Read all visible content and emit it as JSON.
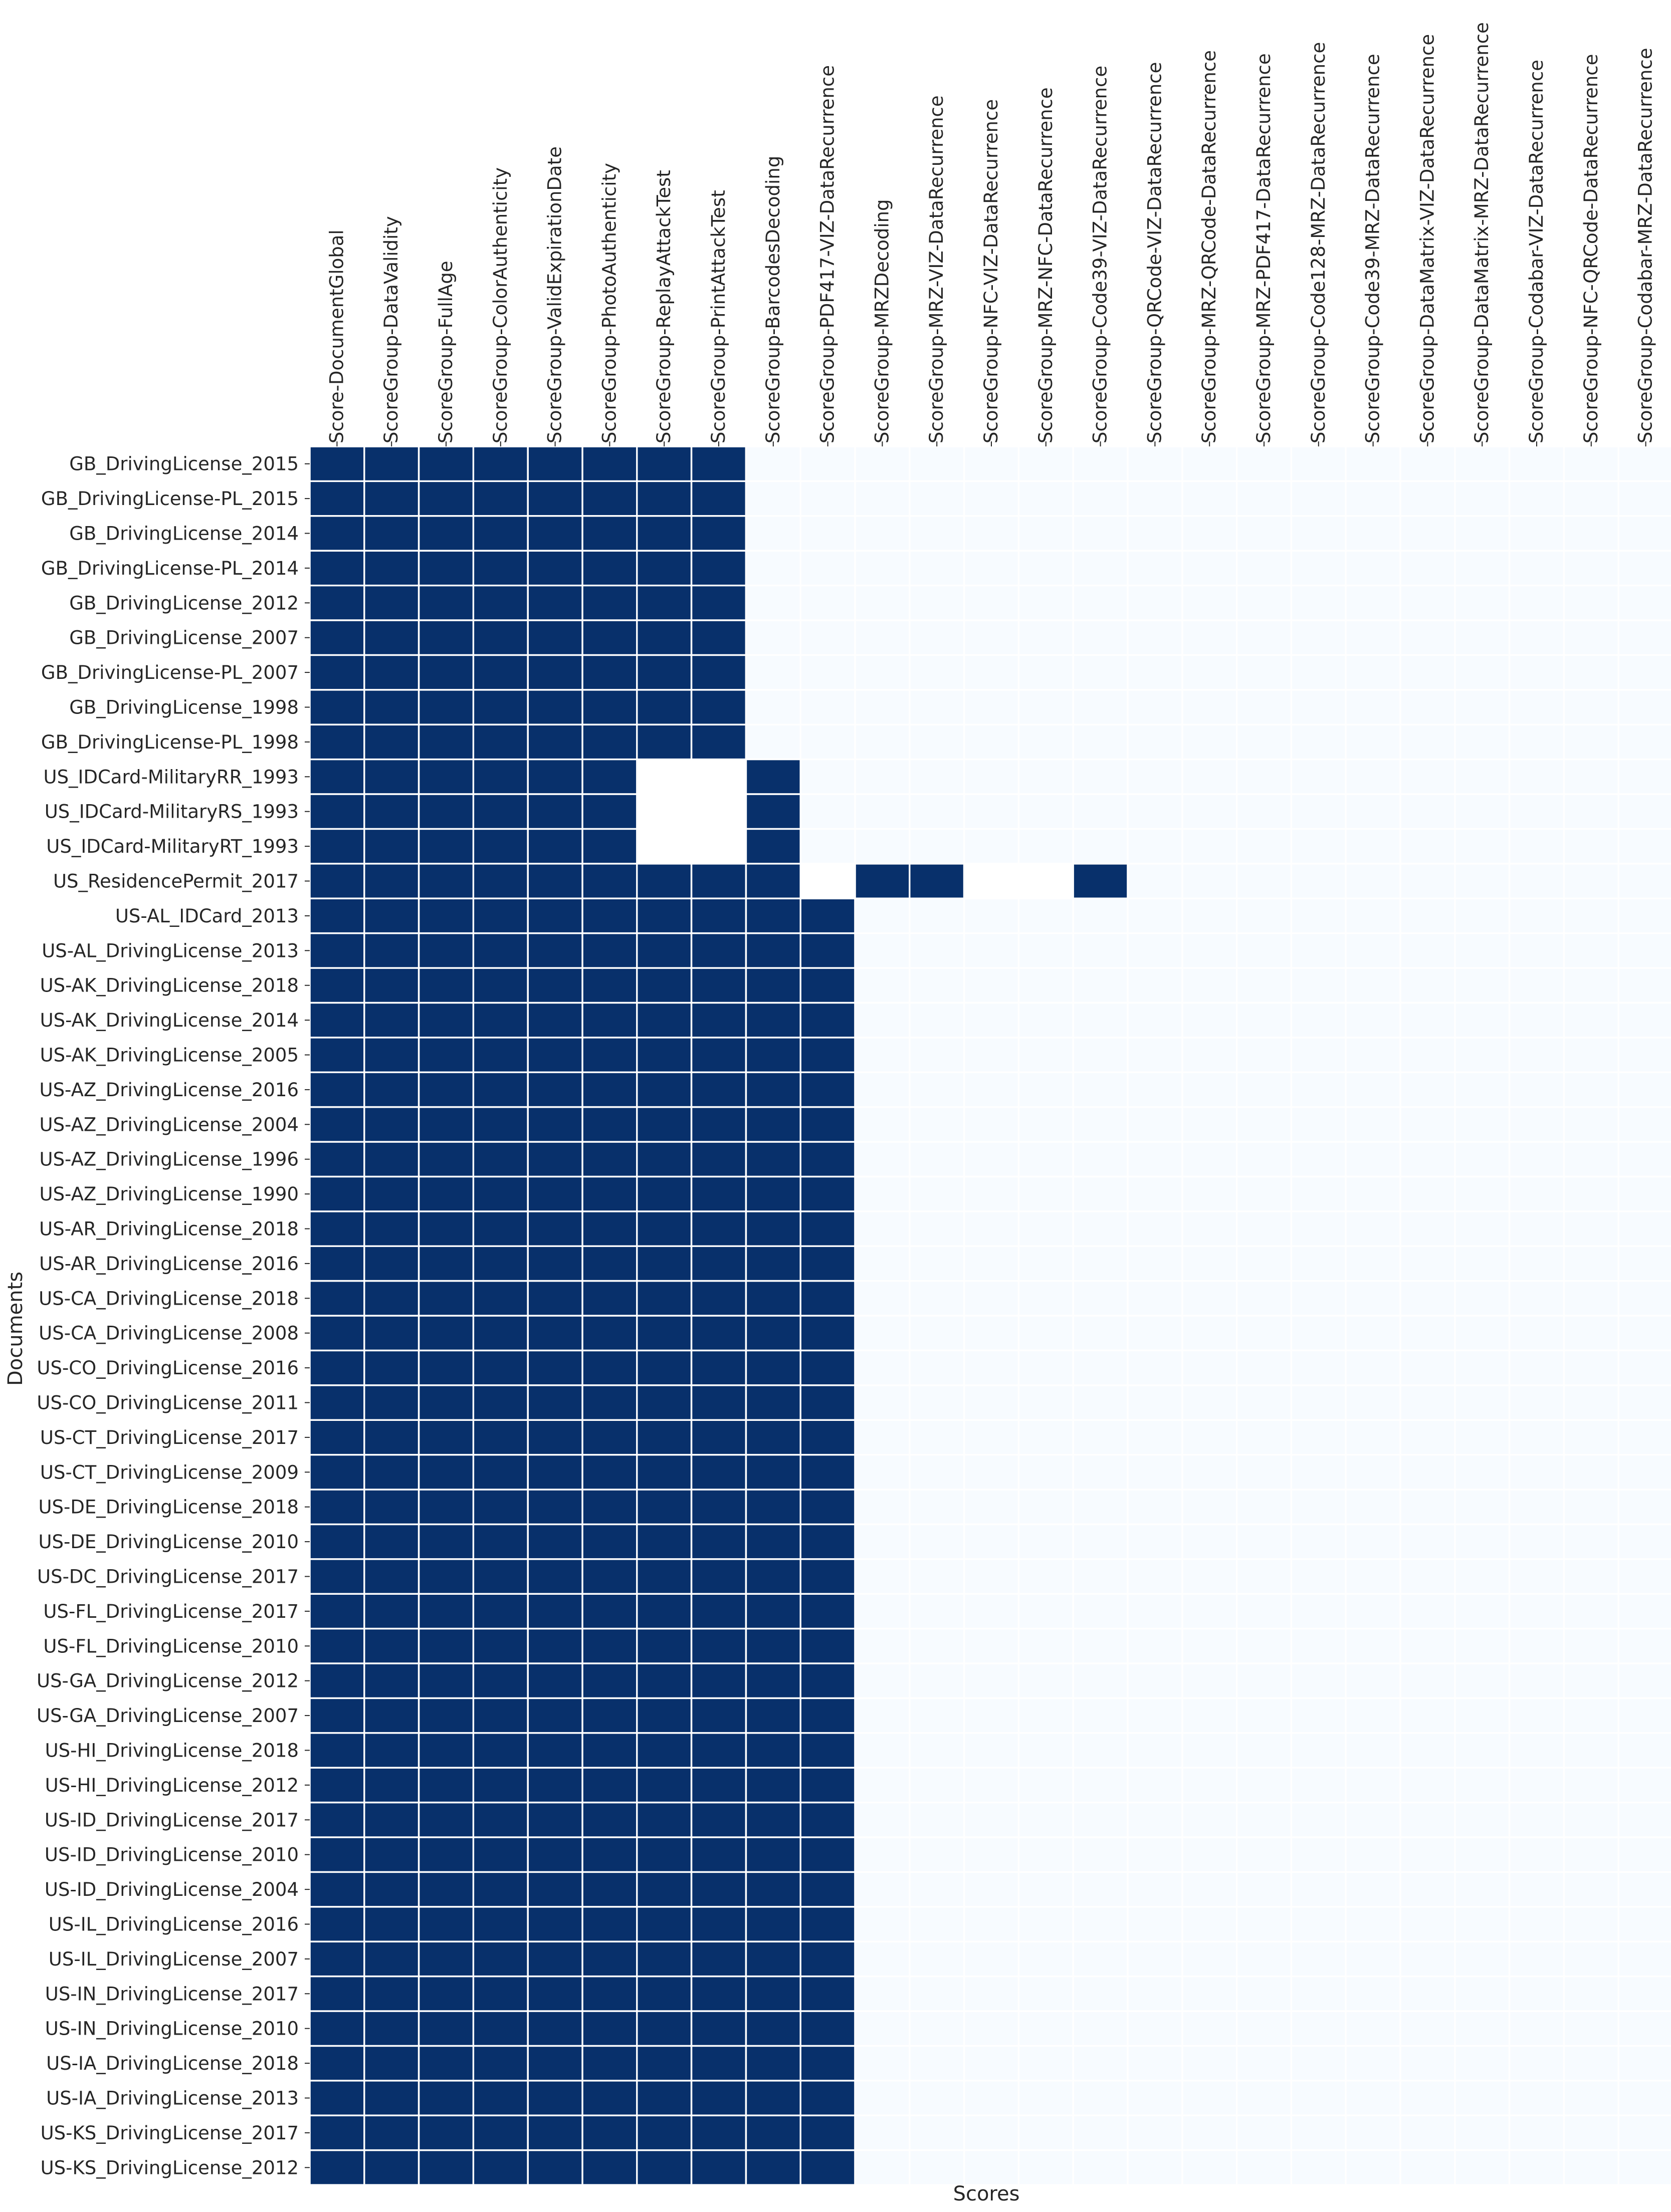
{
  "chart_data": {
    "type": "heatmap",
    "title": "",
    "xlabel": "Scores",
    "ylabel": "Documents",
    "colors": {
      "high": "#08306b",
      "low": "#f7fbff",
      "gap": "#ffffff"
    },
    "value_range": [
      0,
      1
    ],
    "columns": [
      "Score-DocumentGlobal",
      "ScoreGroup-DataValidity",
      "ScoreGroup-FullAge",
      "ScoreGroup-ColorAuthenticity",
      "ScoreGroup-ValidExpirationDate",
      "ScoreGroup-PhotoAuthenticity",
      "ScoreGroup-ReplayAttackTest",
      "ScoreGroup-PrintAttackTest",
      "ScoreGroup-BarcodesDecoding",
      "ScoreGroup-PDF417-VIZ-DataRecurrence",
      "ScoreGroup-MRZDecoding",
      "ScoreGroup-MRZ-VIZ-DataRecurrence",
      "ScoreGroup-NFC-VIZ-DataRecurrence",
      "ScoreGroup-MRZ-NFC-DataRecurrence",
      "ScoreGroup-Code39-VIZ-DataRecurrence",
      "ScoreGroup-QRCode-VIZ-DataRecurrence",
      "ScoreGroup-MRZ-QRCode-DataRecurrence",
      "ScoreGroup-MRZ-PDF417-DataRecurrence",
      "ScoreGroup-Code128-MRZ-DataRecurrence",
      "ScoreGroup-Code39-MRZ-DataRecurrence",
      "ScoreGroup-DataMatrix-VIZ-DataRecurrence",
      "ScoreGroup-DataMatrix-MRZ-DataRecurrence",
      "ScoreGroup-Codabar-VIZ-DataRecurrence",
      "ScoreGroup-NFC-QRCode-DataRecurrence",
      "ScoreGroup-Codabar-MRZ-DataRecurrence"
    ],
    "rows": [
      "GB_DrivingLicense_2015",
      "GB_DrivingLicense-PL_2015",
      "GB_DrivingLicense_2014",
      "GB_DrivingLicense-PL_2014",
      "GB_DrivingLicense_2012",
      "GB_DrivingLicense_2007",
      "GB_DrivingLicense-PL_2007",
      "GB_DrivingLicense_1998",
      "GB_DrivingLicense-PL_1998",
      "US_IDCard-MilitaryRR_1993",
      "US_IDCard-MilitaryRS_1993",
      "US_IDCard-MilitaryRT_1993",
      "US_ResidencePermit_2017",
      "US-AL_IDCard_2013",
      "US-AL_DrivingLicense_2013",
      "US-AK_DrivingLicense_2018",
      "US-AK_DrivingLicense_2014",
      "US-AK_DrivingLicense_2005",
      "US-AZ_DrivingLicense_2016",
      "US-AZ_DrivingLicense_2004",
      "US-AZ_DrivingLicense_1996",
      "US-AZ_DrivingLicense_1990",
      "US-AR_DrivingLicense_2018",
      "US-AR_DrivingLicense_2016",
      "US-CA_DrivingLicense_2018",
      "US-CA_DrivingLicense_2008",
      "US-CO_DrivingLicense_2016",
      "US-CO_DrivingLicense_2011",
      "US-CT_DrivingLicense_2017",
      "US-CT_DrivingLicense_2009",
      "US-DE_DrivingLicense_2018",
      "US-DE_DrivingLicense_2010",
      "US-DC_DrivingLicense_2017",
      "US-FL_DrivingLicense_2017",
      "US-FL_DrivingLicense_2010",
      "US-GA_DrivingLicense_2012",
      "US-GA_DrivingLicense_2007",
      "US-HI_DrivingLicense_2018",
      "US-HI_DrivingLicense_2012",
      "US-ID_DrivingLicense_2017",
      "US-ID_DrivingLicense_2010",
      "US-ID_DrivingLicense_2004",
      "US-IL_DrivingLicense_2016",
      "US-IL_DrivingLicense_2007",
      "US-IN_DrivingLicense_2017",
      "US-IN_DrivingLicense_2010",
      "US-IA_DrivingLicense_2018",
      "US-IA_DrivingLicense_2013",
      "US-KS_DrivingLicense_2017",
      "US-KS_DrivingLicense_2012"
    ],
    "values": [
      [
        1,
        1,
        1,
        1,
        1,
        1,
        1,
        1,
        0,
        0,
        0,
        0,
        0,
        0,
        0,
        0,
        0,
        0,
        0,
        0,
        0,
        0,
        0,
        0,
        0
      ],
      [
        1,
        1,
        1,
        1,
        1,
        1,
        1,
        1,
        0,
        0,
        0,
        0,
        0,
        0,
        0,
        0,
        0,
        0,
        0,
        0,
        0,
        0,
        0,
        0,
        0
      ],
      [
        1,
        1,
        1,
        1,
        1,
        1,
        1,
        1,
        0,
        0,
        0,
        0,
        0,
        0,
        0,
        0,
        0,
        0,
        0,
        0,
        0,
        0,
        0,
        0,
        0
      ],
      [
        1,
        1,
        1,
        1,
        1,
        1,
        1,
        1,
        0,
        0,
        0,
        0,
        0,
        0,
        0,
        0,
        0,
        0,
        0,
        0,
        0,
        0,
        0,
        0,
        0
      ],
      [
        1,
        1,
        1,
        1,
        1,
        1,
        1,
        1,
        0,
        0,
        0,
        0,
        0,
        0,
        0,
        0,
        0,
        0,
        0,
        0,
        0,
        0,
        0,
        0,
        0
      ],
      [
        1,
        1,
        1,
        1,
        1,
        1,
        1,
        1,
        0,
        0,
        0,
        0,
        0,
        0,
        0,
        0,
        0,
        0,
        0,
        0,
        0,
        0,
        0,
        0,
        0
      ],
      [
        1,
        1,
        1,
        1,
        1,
        1,
        1,
        1,
        0,
        0,
        0,
        0,
        0,
        0,
        0,
        0,
        0,
        0,
        0,
        0,
        0,
        0,
        0,
        0,
        0
      ],
      [
        1,
        1,
        1,
        1,
        1,
        1,
        1,
        1,
        0,
        0,
        0,
        0,
        0,
        0,
        0,
        0,
        0,
        0,
        0,
        0,
        0,
        0,
        0,
        0,
        0
      ],
      [
        1,
        1,
        1,
        1,
        1,
        1,
        1,
        1,
        0,
        0,
        0,
        0,
        0,
        0,
        0,
        0,
        0,
        0,
        0,
        0,
        0,
        0,
        0,
        0,
        0
      ],
      [
        1,
        1,
        1,
        1,
        1,
        1,
        0,
        0,
        1,
        0,
        0,
        0,
        0,
        0,
        0,
        0,
        0,
        0,
        0,
        0,
        0,
        0,
        0,
        0,
        0
      ],
      [
        1,
        1,
        1,
        1,
        1,
        1,
        0,
        0,
        1,
        0,
        0,
        0,
        0,
        0,
        0,
        0,
        0,
        0,
        0,
        0,
        0,
        0,
        0,
        0,
        0
      ],
      [
        1,
        1,
        1,
        1,
        1,
        1,
        0,
        0,
        1,
        0,
        0,
        0,
        0,
        0,
        0,
        0,
        0,
        0,
        0,
        0,
        0,
        0,
        0,
        0,
        0
      ],
      [
        1,
        1,
        1,
        1,
        1,
        1,
        1,
        1,
        1,
        0,
        1,
        1,
        0,
        0,
        1,
        0,
        0,
        0,
        0,
        0,
        0,
        0,
        0,
        0,
        0
      ],
      [
        1,
        1,
        1,
        1,
        1,
        1,
        1,
        1,
        1,
        1,
        0,
        0,
        0,
        0,
        0,
        0,
        0,
        0,
        0,
        0,
        0,
        0,
        0,
        0,
        0
      ],
      [
        1,
        1,
        1,
        1,
        1,
        1,
        1,
        1,
        1,
        1,
        0,
        0,
        0,
        0,
        0,
        0,
        0,
        0,
        0,
        0,
        0,
        0,
        0,
        0,
        0
      ],
      [
        1,
        1,
        1,
        1,
        1,
        1,
        1,
        1,
        1,
        1,
        0,
        0,
        0,
        0,
        0,
        0,
        0,
        0,
        0,
        0,
        0,
        0,
        0,
        0,
        0
      ],
      [
        1,
        1,
        1,
        1,
        1,
        1,
        1,
        1,
        1,
        1,
        0,
        0,
        0,
        0,
        0,
        0,
        0,
        0,
        0,
        0,
        0,
        0,
        0,
        0,
        0
      ],
      [
        1,
        1,
        1,
        1,
        1,
        1,
        1,
        1,
        1,
        1,
        0,
        0,
        0,
        0,
        0,
        0,
        0,
        0,
        0,
        0,
        0,
        0,
        0,
        0,
        0
      ],
      [
        1,
        1,
        1,
        1,
        1,
        1,
        1,
        1,
        1,
        1,
        0,
        0,
        0,
        0,
        0,
        0,
        0,
        0,
        0,
        0,
        0,
        0,
        0,
        0,
        0
      ],
      [
        1,
        1,
        1,
        1,
        1,
        1,
        1,
        1,
        1,
        1,
        0,
        0,
        0,
        0,
        0,
        0,
        0,
        0,
        0,
        0,
        0,
        0,
        0,
        0,
        0
      ],
      [
        1,
        1,
        1,
        1,
        1,
        1,
        1,
        1,
        1,
        1,
        0,
        0,
        0,
        0,
        0,
        0,
        0,
        0,
        0,
        0,
        0,
        0,
        0,
        0,
        0
      ],
      [
        1,
        1,
        1,
        1,
        1,
        1,
        1,
        1,
        1,
        1,
        0,
        0,
        0,
        0,
        0,
        0,
        0,
        0,
        0,
        0,
        0,
        0,
        0,
        0,
        0
      ],
      [
        1,
        1,
        1,
        1,
        1,
        1,
        1,
        1,
        1,
        1,
        0,
        0,
        0,
        0,
        0,
        0,
        0,
        0,
        0,
        0,
        0,
        0,
        0,
        0,
        0
      ],
      [
        1,
        1,
        1,
        1,
        1,
        1,
        1,
        1,
        1,
        1,
        0,
        0,
        0,
        0,
        0,
        0,
        0,
        0,
        0,
        0,
        0,
        0,
        0,
        0,
        0
      ],
      [
        1,
        1,
        1,
        1,
        1,
        1,
        1,
        1,
        1,
        1,
        0,
        0,
        0,
        0,
        0,
        0,
        0,
        0,
        0,
        0,
        0,
        0,
        0,
        0,
        0
      ],
      [
        1,
        1,
        1,
        1,
        1,
        1,
        1,
        1,
        1,
        1,
        0,
        0,
        0,
        0,
        0,
        0,
        0,
        0,
        0,
        0,
        0,
        0,
        0,
        0,
        0
      ],
      [
        1,
        1,
        1,
        1,
        1,
        1,
        1,
        1,
        1,
        1,
        0,
        0,
        0,
        0,
        0,
        0,
        0,
        0,
        0,
        0,
        0,
        0,
        0,
        0,
        0
      ],
      [
        1,
        1,
        1,
        1,
        1,
        1,
        1,
        1,
        1,
        1,
        0,
        0,
        0,
        0,
        0,
        0,
        0,
        0,
        0,
        0,
        0,
        0,
        0,
        0,
        0
      ],
      [
        1,
        1,
        1,
        1,
        1,
        1,
        1,
        1,
        1,
        1,
        0,
        0,
        0,
        0,
        0,
        0,
        0,
        0,
        0,
        0,
        0,
        0,
        0,
        0,
        0
      ],
      [
        1,
        1,
        1,
        1,
        1,
        1,
        1,
        1,
        1,
        1,
        0,
        0,
        0,
        0,
        0,
        0,
        0,
        0,
        0,
        0,
        0,
        0,
        0,
        0,
        0
      ],
      [
        1,
        1,
        1,
        1,
        1,
        1,
        1,
        1,
        1,
        1,
        0,
        0,
        0,
        0,
        0,
        0,
        0,
        0,
        0,
        0,
        0,
        0,
        0,
        0,
        0
      ],
      [
        1,
        1,
        1,
        1,
        1,
        1,
        1,
        1,
        1,
        1,
        0,
        0,
        0,
        0,
        0,
        0,
        0,
        0,
        0,
        0,
        0,
        0,
        0,
        0,
        0
      ],
      [
        1,
        1,
        1,
        1,
        1,
        1,
        1,
        1,
        1,
        1,
        0,
        0,
        0,
        0,
        0,
        0,
        0,
        0,
        0,
        0,
        0,
        0,
        0,
        0,
        0
      ],
      [
        1,
        1,
        1,
        1,
        1,
        1,
        1,
        1,
        1,
        1,
        0,
        0,
        0,
        0,
        0,
        0,
        0,
        0,
        0,
        0,
        0,
        0,
        0,
        0,
        0
      ],
      [
        1,
        1,
        1,
        1,
        1,
        1,
        1,
        1,
        1,
        1,
        0,
        0,
        0,
        0,
        0,
        0,
        0,
        0,
        0,
        0,
        0,
        0,
        0,
        0,
        0
      ],
      [
        1,
        1,
        1,
        1,
        1,
        1,
        1,
        1,
        1,
        1,
        0,
        0,
        0,
        0,
        0,
        0,
        0,
        0,
        0,
        0,
        0,
        0,
        0,
        0,
        0
      ],
      [
        1,
        1,
        1,
        1,
        1,
        1,
        1,
        1,
        1,
        1,
        0,
        0,
        0,
        0,
        0,
        0,
        0,
        0,
        0,
        0,
        0,
        0,
        0,
        0,
        0
      ],
      [
        1,
        1,
        1,
        1,
        1,
        1,
        1,
        1,
        1,
        1,
        0,
        0,
        0,
        0,
        0,
        0,
        0,
        0,
        0,
        0,
        0,
        0,
        0,
        0,
        0
      ],
      [
        1,
        1,
        1,
        1,
        1,
        1,
        1,
        1,
        1,
        1,
        0,
        0,
        0,
        0,
        0,
        0,
        0,
        0,
        0,
        0,
        0,
        0,
        0,
        0,
        0
      ],
      [
        1,
        1,
        1,
        1,
        1,
        1,
        1,
        1,
        1,
        1,
        0,
        0,
        0,
        0,
        0,
        0,
        0,
        0,
        0,
        0,
        0,
        0,
        0,
        0,
        0
      ],
      [
        1,
        1,
        1,
        1,
        1,
        1,
        1,
        1,
        1,
        1,
        0,
        0,
        0,
        0,
        0,
        0,
        0,
        0,
        0,
        0,
        0,
        0,
        0,
        0,
        0
      ],
      [
        1,
        1,
        1,
        1,
        1,
        1,
        1,
        1,
        1,
        1,
        0,
        0,
        0,
        0,
        0,
        0,
        0,
        0,
        0,
        0,
        0,
        0,
        0,
        0,
        0
      ],
      [
        1,
        1,
        1,
        1,
        1,
        1,
        1,
        1,
        1,
        1,
        0,
        0,
        0,
        0,
        0,
        0,
        0,
        0,
        0,
        0,
        0,
        0,
        0,
        0,
        0
      ],
      [
        1,
        1,
        1,
        1,
        1,
        1,
        1,
        1,
        1,
        1,
        0,
        0,
        0,
        0,
        0,
        0,
        0,
        0,
        0,
        0,
        0,
        0,
        0,
        0,
        0
      ],
      [
        1,
        1,
        1,
        1,
        1,
        1,
        1,
        1,
        1,
        1,
        0,
        0,
        0,
        0,
        0,
        0,
        0,
        0,
        0,
        0,
        0,
        0,
        0,
        0,
        0
      ],
      [
        1,
        1,
        1,
        1,
        1,
        1,
        1,
        1,
        1,
        1,
        0,
        0,
        0,
        0,
        0,
        0,
        0,
        0,
        0,
        0,
        0,
        0,
        0,
        0,
        0
      ],
      [
        1,
        1,
        1,
        1,
        1,
        1,
        1,
        1,
        1,
        1,
        0,
        0,
        0,
        0,
        0,
        0,
        0,
        0,
        0,
        0,
        0,
        0,
        0,
        0,
        0
      ],
      [
        1,
        1,
        1,
        1,
        1,
        1,
        1,
        1,
        1,
        1,
        0,
        0,
        0,
        0,
        0,
        0,
        0,
        0,
        0,
        0,
        0,
        0,
        0,
        0,
        0
      ],
      [
        1,
        1,
        1,
        1,
        1,
        1,
        1,
        1,
        1,
        1,
        0,
        0,
        0,
        0,
        0,
        0,
        0,
        0,
        0,
        0,
        0,
        0,
        0,
        0,
        0
      ],
      [
        1,
        1,
        1,
        1,
        1,
        1,
        1,
        1,
        1,
        1,
        0,
        0,
        0,
        0,
        0,
        0,
        0,
        0,
        0,
        0,
        0,
        0,
        0,
        0,
        0
      ]
    ],
    "masked_cells": [
      [
        9,
        6
      ],
      [
        9,
        7
      ],
      [
        10,
        6
      ],
      [
        10,
        7
      ],
      [
        11,
        6
      ],
      [
        11,
        7
      ],
      [
        12,
        9
      ],
      [
        12,
        12
      ],
      [
        12,
        13
      ]
    ],
    "colorbar": false,
    "grid": false
  }
}
